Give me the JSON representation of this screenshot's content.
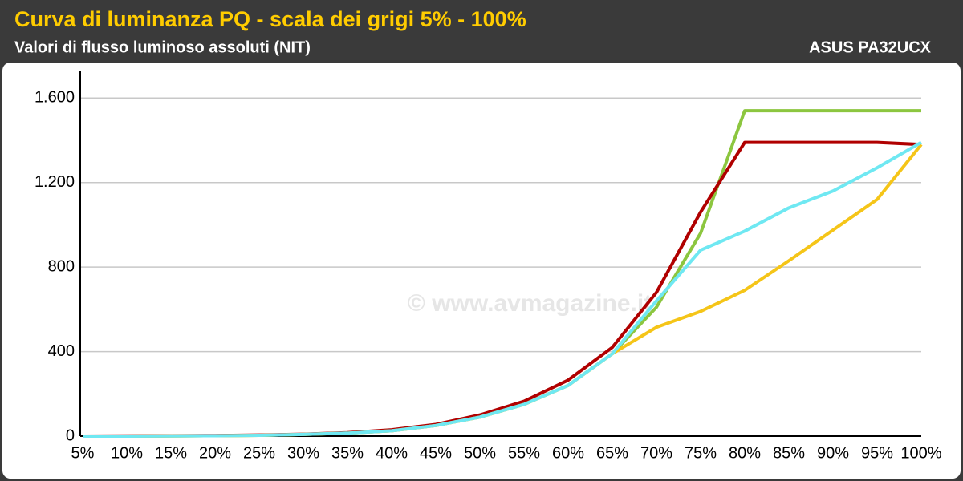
{
  "chart_data": {
    "type": "line",
    "title": "Curva di luminanza PQ - scala dei grigi 5% - 100%",
    "subtitle": "Valori di flusso luminoso assoluti (NIT)",
    "annotation": "ASUS PA32UCX",
    "watermark": "© www.avmagazine.it",
    "categories": [
      "5%",
      "10%",
      "15%",
      "20%",
      "25%",
      "30%",
      "35%",
      "40%",
      "45%",
      "50%",
      "55%",
      "60%",
      "65%",
      "70%",
      "75%",
      "80%",
      "85%",
      "90%",
      "95%",
      "100%"
    ],
    "series": [
      {
        "color": "#8cc63f",
        "values": [
          0,
          0,
          1,
          2,
          4,
          8,
          14,
          25,
          50,
          90,
          150,
          240,
          390,
          610,
          960,
          1540,
          1540,
          1540,
          1540,
          1540
        ]
      },
      {
        "color": "#b00000",
        "values": [
          0,
          1,
          2,
          3,
          5,
          9,
          16,
          30,
          55,
          100,
          165,
          265,
          420,
          680,
          1060,
          1390,
          1390,
          1390,
          1390,
          1380
        ]
      },
      {
        "color": "#f5c518",
        "values": [
          0,
          0,
          1,
          2,
          4,
          8,
          14,
          25,
          50,
          90,
          150,
          240,
          390,
          515,
          590,
          690,
          830,
          975,
          1120,
          1380
        ]
      },
      {
        "color": "#6fe8f2",
        "values": [
          0,
          0,
          1,
          2,
          4,
          8,
          14,
          25,
          50,
          90,
          150,
          240,
          390,
          640,
          880,
          970,
          1080,
          1160,
          1270,
          1390
        ]
      }
    ],
    "ylim": [
      0,
      1730
    ],
    "yticks": [
      0,
      400,
      800,
      {
        "value": 1200,
        "label": "1.200"
      },
      {
        "value": 1600,
        "label": "1.600"
      }
    ],
    "grid": true
  }
}
